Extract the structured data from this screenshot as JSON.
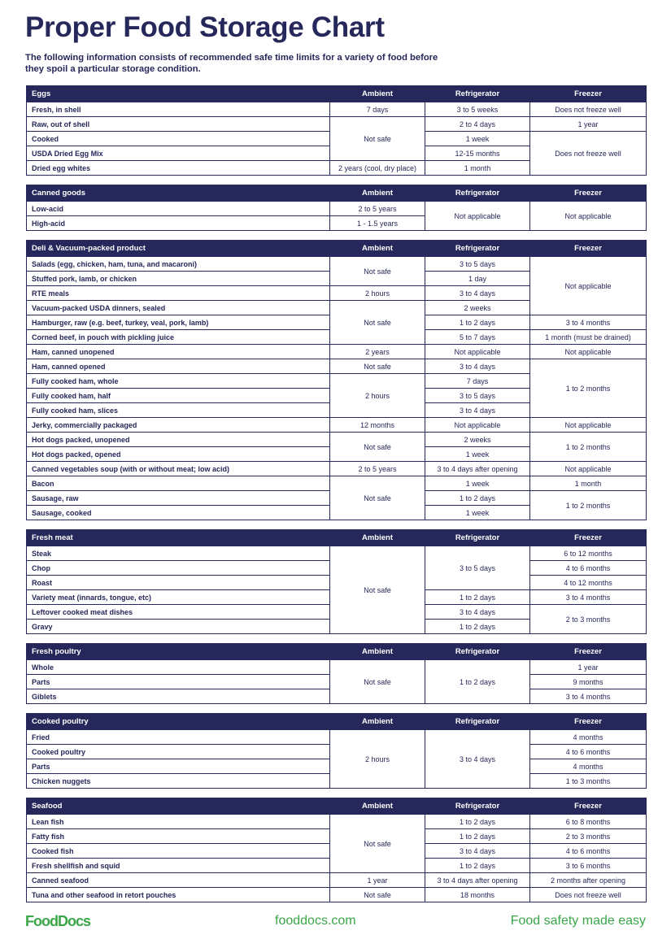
{
  "title": "Proper Food Storage Chart",
  "intro": "The following information consists of recommended safe time limits for a variety of food before they spoil a particular storage condition.",
  "columns": [
    "Ambient",
    "Refrigerator",
    "Freezer"
  ],
  "colors": {
    "navy": "#26275a",
    "green": "#3aa648"
  },
  "tables": [
    {
      "category": "Eggs",
      "rows": [
        [
          "Fresh, in shell",
          "7 days",
          "3 to 5 weeks",
          "Does not freeze well"
        ],
        [
          "Raw, out of shell",
          "Not safe",
          "2 to 4 days",
          "1 year"
        ],
        [
          "Cooked",
          null,
          "1 week",
          "Does not freeze well"
        ],
        [
          "USDA Dried Egg Mix",
          null,
          "12-15 months",
          null
        ],
        [
          "Dried egg whites",
          "2 years (cool, dry place)",
          "1 month",
          null
        ]
      ]
    },
    {
      "category": "Canned goods",
      "rows": [
        [
          "Low-acid",
          "2 to 5 years",
          "Not applicable",
          "Not applicable"
        ],
        [
          "High-acid",
          "1 - 1.5 years",
          null,
          null
        ]
      ]
    },
    {
      "category": "Deli & Vacuum-packed product",
      "rows": [
        [
          "Salads (egg, chicken, ham, tuna, and macaroni)",
          "Not safe",
          "3 to 5 days",
          "Not applicable"
        ],
        [
          "Stuffed pork, lamb, or chicken",
          null,
          "1 day",
          null
        ],
        [
          "RTE meals",
          "2 hours",
          "3 to 4 days",
          null
        ],
        [
          "Vacuum-packed USDA dinners, sealed",
          "Not safe",
          "2 weeks",
          null
        ],
        [
          "Hamburger, raw (e.g. beef, turkey, veal, pork, lamb)",
          null,
          "1 to 2 days",
          "3 to 4 months"
        ],
        [
          "Corned beef, in pouch with pickling juice",
          null,
          "5 to 7 days",
          "1 month (must be drained)"
        ],
        [
          "Ham, canned unopened",
          "2 years",
          "Not applicable",
          "Not applicable"
        ],
        [
          "Ham, canned opened",
          "Not safe",
          "3 to 4 days",
          "1 to 2 months"
        ],
        [
          "Fully cooked ham, whole",
          "2 hours",
          "7 days",
          null
        ],
        [
          "Fully cooked ham, half",
          null,
          "3 to 5 days",
          null
        ],
        [
          "Fully cooked ham, slices",
          null,
          "3 to 4 days",
          null
        ],
        [
          "Jerky, commercially packaged",
          "12 months",
          "Not applicable",
          "Not applicable"
        ],
        [
          "Hot dogs packed, unopened",
          "Not safe",
          "2 weeks",
          "1 to 2 months"
        ],
        [
          "Hot dogs packed, opened",
          null,
          "1 week",
          null
        ],
        [
          "Canned vegetables soup (with or without meat; low acid)",
          "2 to 5 years",
          "3 to 4 days after opening",
          "Not applicable"
        ],
        [
          "Bacon",
          "Not safe",
          "1 week",
          "1 month"
        ],
        [
          "Sausage, raw",
          null,
          "1 to 2 days",
          "1 to 2 months"
        ],
        [
          "Sausage, cooked",
          null,
          "1 week",
          null
        ]
      ]
    },
    {
      "category": "Fresh meat",
      "rows": [
        [
          "Steak",
          "Not safe",
          "3 to 5 days",
          "6 to 12 months"
        ],
        [
          "Chop",
          null,
          null,
          "4 to 6 months"
        ],
        [
          "Roast",
          null,
          null,
          "4 to 12 months"
        ],
        [
          "Variety meat (innards, tongue, etc)",
          null,
          "1 to 2 days",
          "3 to 4 months"
        ],
        [
          "Leftover cooked meat dishes",
          null,
          "3 to 4 days",
          "2 to 3 months"
        ],
        [
          "Gravy",
          null,
          "1 to 2 days",
          null
        ]
      ]
    },
    {
      "category": "Fresh poultry",
      "rows": [
        [
          "Whole",
          "Not safe",
          "1 to 2 days",
          "1 year"
        ],
        [
          "Parts",
          null,
          null,
          "9 months"
        ],
        [
          "Giblets",
          null,
          null,
          "3 to 4 months"
        ]
      ]
    },
    {
      "category": "Cooked poultry",
      "rows": [
        [
          "Fried",
          "2 hours",
          "3 to 4 days",
          "4 months"
        ],
        [
          "Cooked poultry",
          null,
          null,
          "4 to 6 months"
        ],
        [
          "Parts",
          null,
          null,
          "4 months"
        ],
        [
          "Chicken nuggets",
          null,
          null,
          "1 to 3 months"
        ]
      ]
    },
    {
      "category": "Seafood",
      "rows": [
        [
          "Lean fish",
          "Not safe",
          "1 to 2 days",
          "6 to 8 months"
        ],
        [
          "Fatty fish",
          null,
          "1 to 2 days",
          "2 to 3 months"
        ],
        [
          "Cooked fish",
          null,
          "3 to 4 days",
          "4 to 6 months"
        ],
        [
          "Fresh shellfish and squid",
          null,
          "1 to 2 days",
          "3 to 6 months"
        ],
        [
          "Canned seafood",
          "1 year",
          "3 to 4 days after opening",
          "2 months after opening"
        ],
        [
          "Tuna and other seafood in retort pouches",
          "Not safe",
          "18 months",
          "Does not freeze well"
        ]
      ]
    }
  ],
  "footer": {
    "logo": "FoodDocs",
    "site": "fooddocs.com",
    "tagline": "Food safety made easy"
  }
}
